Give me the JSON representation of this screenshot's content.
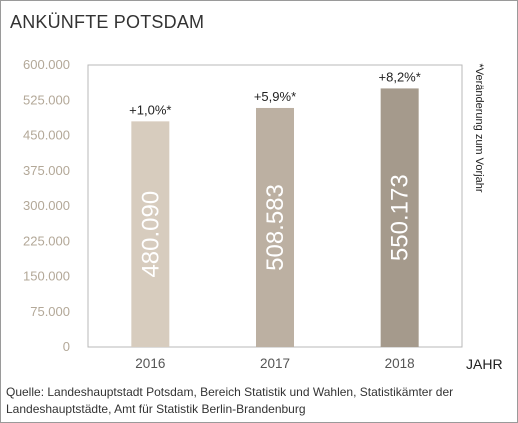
{
  "chart_data": {
    "type": "bar",
    "title": "ANKÜNFTE POTSDAM",
    "categories": [
      "2016",
      "2017",
      "2018"
    ],
    "values": [
      480090,
      508583,
      550173
    ],
    "value_labels": [
      "480.090",
      "508.583",
      "550.173"
    ],
    "change_labels": [
      "+1,0%*",
      "+5,9%*",
      "+8,2%*"
    ],
    "bar_colors": [
      "#d7ccbe",
      "#bcb0a2",
      "#a59a8c"
    ],
    "xlabel": "JAHR",
    "ylabel": "",
    "ylim": [
      0,
      600000
    ],
    "yticks": [
      0,
      75000,
      150000,
      225000,
      300000,
      375000,
      450000,
      525000,
      600000
    ],
    "ytick_labels": [
      "0",
      "75.000",
      "150.000",
      "225.000",
      "300.000",
      "375.000",
      "450.000",
      "525.000",
      "600.000"
    ],
    "side_note": "*Veränderung zum Vorjahr",
    "grid": false
  },
  "source": "Quelle: Landeshauptstadt Potsdam, Bereich Statistik und Wahlen, Statistikämter der Landeshauptstädte, Amt für Statistik Berlin-Brandenburg"
}
